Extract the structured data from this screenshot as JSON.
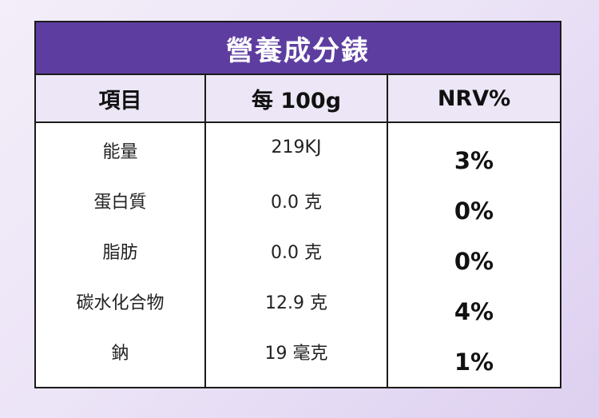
{
  "title": "營養成分錶",
  "headers": [
    "項目",
    "每 100g",
    "NRV%"
  ],
  "rows": [
    {
      "item": "能量",
      "per100g": "219KJ",
      "nrv": "3%"
    },
    {
      "item": "蛋白質",
      "per100g": "0.0 克",
      "nrv": "0%"
    },
    {
      "item": "脂肪",
      "per100g": "0.0 克",
      "nrv": "0%"
    },
    {
      "item": "碳水化合物",
      "per100g": "12.9 克",
      "nrv": "4%"
    },
    {
      "item": "鈉",
      "per100g": "19 毫克",
      "nrv": "1%"
    }
  ],
  "colors": {
    "title_bg": "#5d3ea0",
    "header_bg": "#ece6f6",
    "border": "#1a1a1a"
  }
}
